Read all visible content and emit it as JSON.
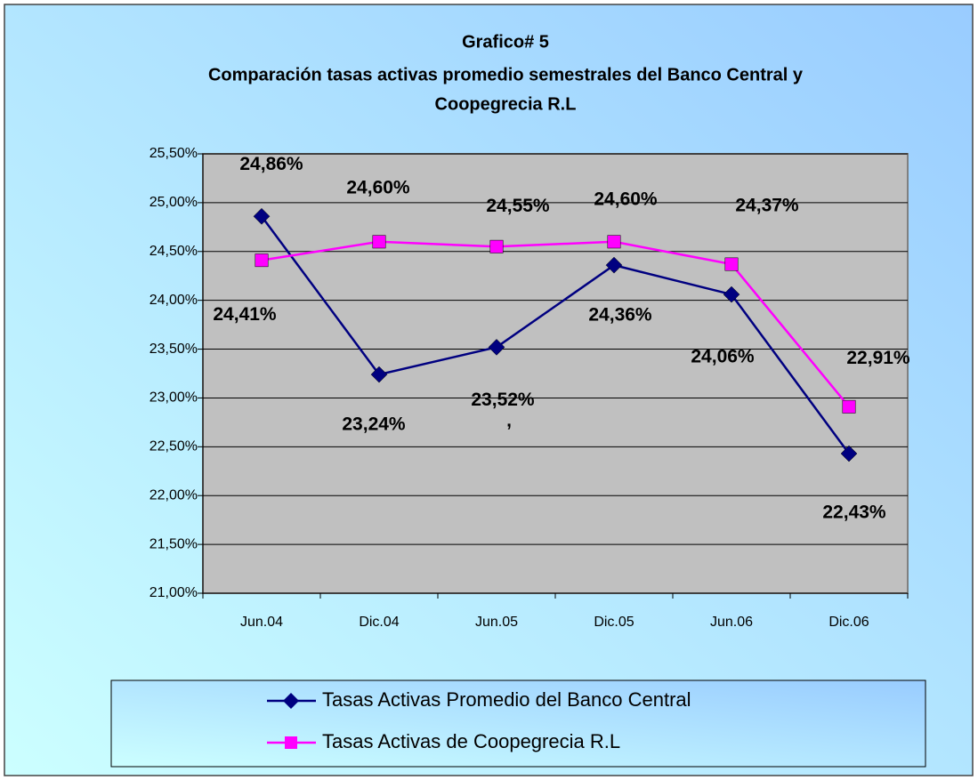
{
  "chart_data": {
    "type": "line",
    "title": [
      "Grafico# 5",
      "Comparación tasas activas promedio semestrales del Banco Central y",
      "Coopegrecia R.L"
    ],
    "categories": [
      "Jun.04",
      "Dic.04",
      "Jun.05",
      "Dic.05",
      "Jun.06",
      "Dic.06"
    ],
    "series": [
      {
        "name": "Tasas Activas Promedio del Banco Central",
        "color": "#000080",
        "marker": "diamond",
        "values": [
          24.86,
          23.24,
          23.52,
          24.36,
          24.06,
          22.43
        ],
        "value_labels": [
          "24,86%",
          "23,24%",
          "23,52%",
          "24,36%",
          "24,06%",
          "22,43%"
        ]
      },
      {
        "name": "Tasas Activas de Coopegrecia R.L",
        "color": "#ff00ff",
        "marker": "square",
        "values": [
          24.41,
          24.6,
          24.55,
          24.6,
          24.37,
          22.91
        ],
        "value_labels": [
          "24,41%",
          "24,60%",
          "24,55%",
          "24,60%",
          "24,37%",
          "22,91%"
        ]
      }
    ],
    "annotations": [
      ","
    ],
    "ylim": [
      21,
      25.5
    ],
    "yticks": [
      {
        "value": 21,
        "label": "21,00%"
      },
      {
        "value": 21.5,
        "label": "21,50%"
      },
      {
        "value": 22,
        "label": "22,00%"
      },
      {
        "value": 22.5,
        "label": "22,50%"
      },
      {
        "value": 23,
        "label": "23,00%"
      },
      {
        "value": 23.5,
        "label": "23,50%"
      },
      {
        "value": 24,
        "label": "24,00%"
      },
      {
        "value": 24.5,
        "label": "24,50%"
      },
      {
        "value": 25,
        "label": "25,00%"
      },
      {
        "value": 25.5,
        "label": "25,50%"
      }
    ],
    "grid": true,
    "plot_background": "#c0c0c0",
    "legend": "bottom"
  }
}
